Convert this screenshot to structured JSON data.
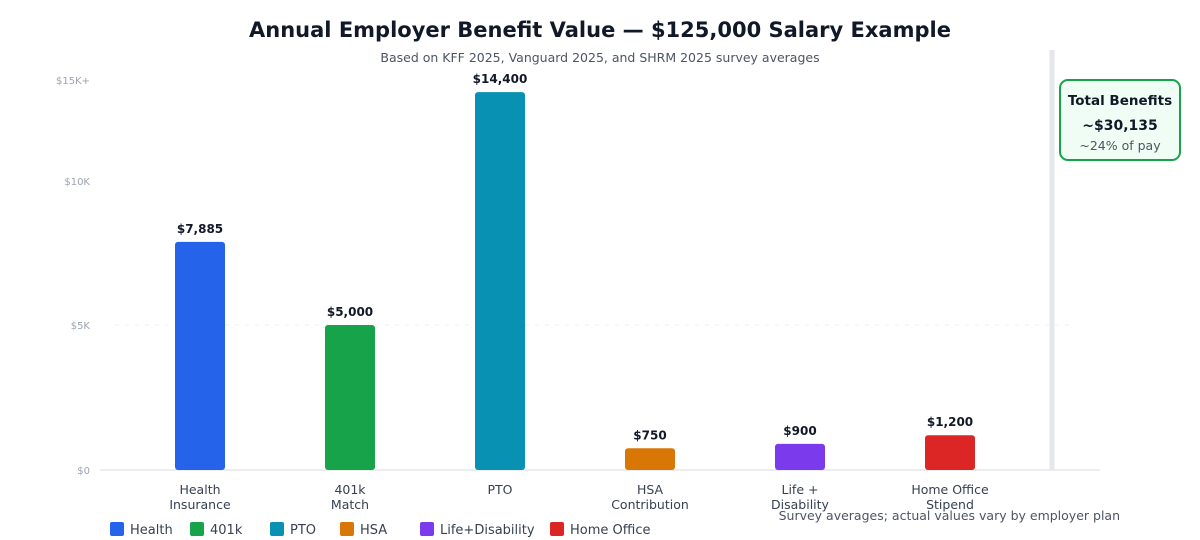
{
  "chart_data": {
    "type": "bar",
    "title": "Annual Employer Benefit Value — $125,000 Salary Example",
    "subtitle": "Based on KFF 2025, Vanguard 2025, and SHRM 2025 survey averages",
    "categories": [
      [
        "Health",
        "Insurance"
      ],
      [
        "401k",
        "Match"
      ],
      [
        "PTO"
      ],
      [
        "HSA",
        "Contribution"
      ],
      [
        "Life +",
        "Disability"
      ],
      [
        "Home Office",
        "Stipend"
      ]
    ],
    "values": [
      7885,
      5000,
      14400,
      750,
      900,
      1200
    ],
    "data_labels": [
      "$7,885",
      "$5,000",
      "$14,400",
      "$750",
      "$900",
      "$1,200"
    ],
    "bar_colors": [
      "#2563eb",
      "#16a34a",
      "#0891b2",
      "#d97706",
      "#7c3aed",
      "#dc2626"
    ],
    "y_ticks": [
      {
        "value": 0,
        "label": "$0"
      },
      {
        "value": 5000,
        "label": "$5K"
      },
      {
        "value": 10000,
        "label": "$10K"
      },
      {
        "value": 15000,
        "label": "$15K+"
      }
    ],
    "y_scale": "piecewise-linear (tick marks evenly map $0, $5K, $10K, $15K+)",
    "ylim": [
      0,
      15000
    ],
    "grid": "dashed line at $5K",
    "legend_position": "bottom-left",
    "legend": [
      {
        "label": "Health",
        "color": "#2563eb"
      },
      {
        "label": "401k",
        "color": "#16a34a"
      },
      {
        "label": "PTO",
        "color": "#0891b2"
      },
      {
        "label": "HSA",
        "color": "#d97706"
      },
      {
        "label": "Life+Disability",
        "color": "#7c3aed"
      },
      {
        "label": "Home Office",
        "color": "#dc2626"
      }
    ],
    "note": "Survey averages; actual values vary by employer plan",
    "total_box": {
      "title": "Total Benefits",
      "value": "~$30,135",
      "percent": "~24% of pay",
      "accent_color": "#16a34a",
      "fill_color": "#f0fdf4"
    }
  }
}
